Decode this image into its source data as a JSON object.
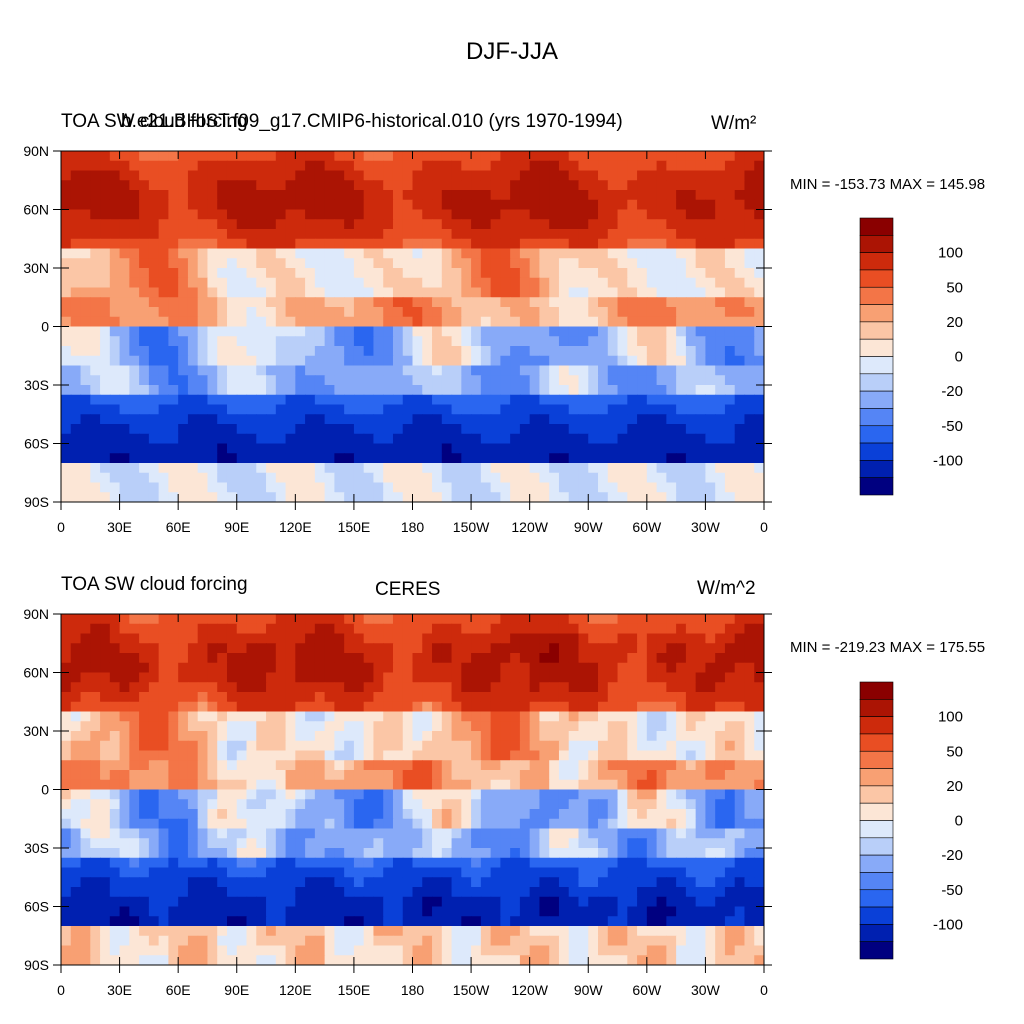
{
  "figure": {
    "title": "DJF-JJA"
  },
  "colorbar": {
    "levels": [
      -100,
      -50,
      -20,
      0,
      20,
      50,
      100
    ],
    "colors": [
      "#000080",
      "#0020b0",
      "#0a40d8",
      "#2a66f0",
      "#5585f5",
      "#88aaf8",
      "#b9cff9",
      "#dde9fb",
      "#fce6d6",
      "#fbc6a6",
      "#f8a073",
      "#f37547",
      "#e94e23",
      "#cd2a0c",
      "#ab1404",
      "#8a0000"
    ],
    "tick_labels": [
      "100",
      "50",
      "20",
      "0",
      "-20",
      "-50",
      "-100"
    ]
  },
  "axes": {
    "x_tick_labels": [
      "0",
      "30E",
      "60E",
      "90E",
      "120E",
      "150E",
      "180",
      "150W",
      "120W",
      "90W",
      "60W",
      "30W",
      "0"
    ],
    "y_tick_labels": [
      "90N",
      "60N",
      "30N",
      "0",
      "30S",
      "60S",
      "90S"
    ]
  },
  "chart_data": [
    {
      "type": "heatmap",
      "title_left": "TOA SW cloud forcing",
      "title_center": "b.e21.BHIST.f09_g17.CMIP6-historical.010 (yrs 1970-1994)",
      "units": "W/m²",
      "min_max_text": "MIN = -153.73 MAX = 145.98",
      "min": -153.73,
      "max": 145.98,
      "xlim": [
        0,
        360
      ],
      "ylim": [
        -90,
        90
      ]
    },
    {
      "type": "heatmap",
      "title_left": "TOA SW cloud forcing",
      "title_center": "CERES",
      "units": "W/m^2",
      "min_max_text": "MIN = -219.23 MAX = 175.55",
      "min": -219.23,
      "max": 175.55,
      "xlim": [
        0,
        360
      ],
      "ylim": [
        -90,
        90
      ]
    }
  ]
}
